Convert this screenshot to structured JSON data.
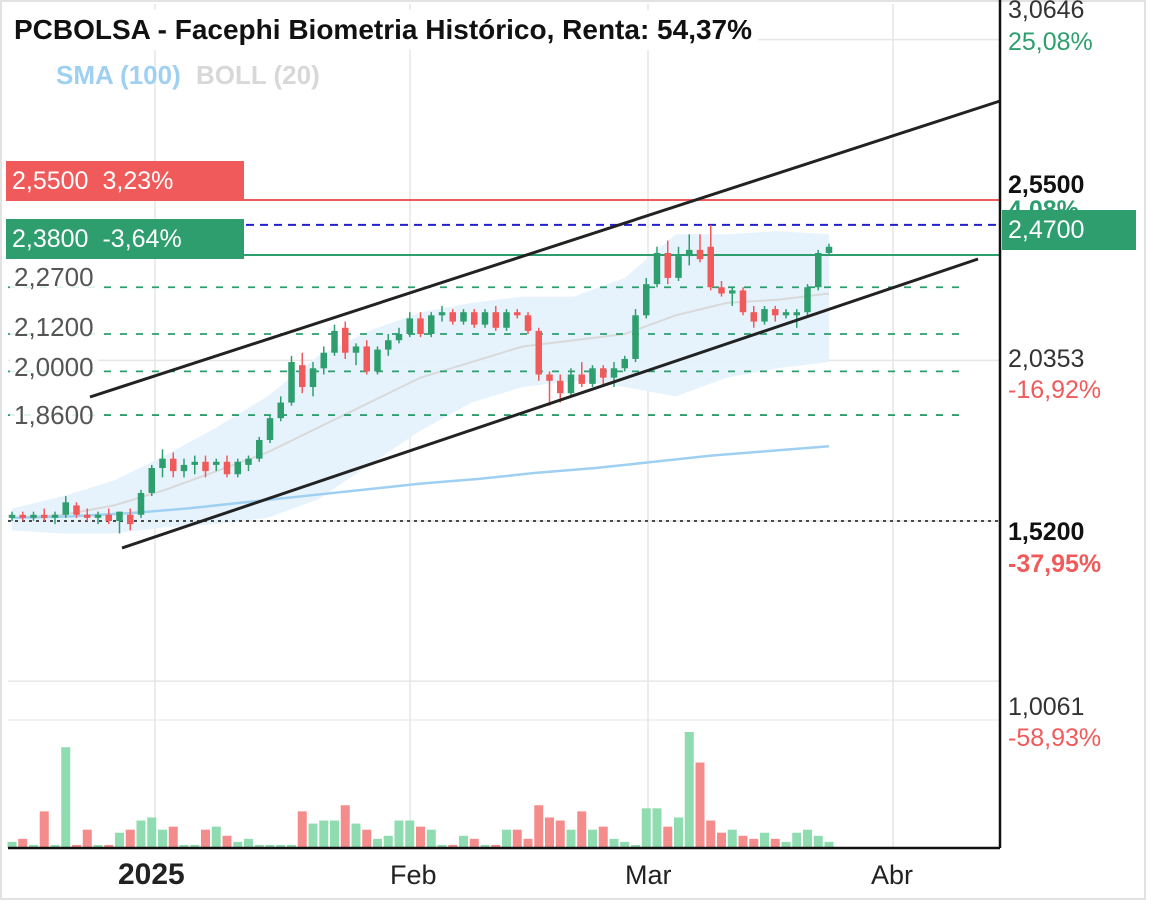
{
  "title": "PCBOLSA - Facephi Biometria Histórico, Renta: 54,37%",
  "indicators": {
    "sma": "SMA (100)",
    "boll": "BOLL (20)"
  },
  "badges": [
    {
      "price": "2,5500",
      "pct": "3,23%",
      "color": "#f05a5a"
    },
    {
      "price": "2,3800",
      "pct": "-3,64%",
      "color": "#2e9e6e"
    }
  ],
  "levels": [
    "2,2700",
    "2,1200",
    "2,0000",
    "1,8600"
  ],
  "right_axis": [
    {
      "price": "3,0646",
      "pct": "25,08%"
    },
    {
      "price": "2,5500",
      "pct": "4,08%"
    },
    {
      "price": "2,4700"
    },
    {
      "price": "2,0353",
      "pct": "-16,92%"
    },
    {
      "price": "1,5200",
      "pct": "-37,95%"
    },
    {
      "price": "1,0061",
      "pct": "-58,93%"
    }
  ],
  "x_labels": [
    "2025",
    "Feb",
    "Mar",
    "Abr"
  ],
  "colors": {
    "up": "#2e9e6e",
    "down": "#f05a5a",
    "sma": "#9fd0f2",
    "boll_band": "#e3f2fd",
    "boll_mid": "#d9d9d9",
    "channel": "#222222",
    "target_line": "#2020cc"
  },
  "chart_data": {
    "type": "candlestick",
    "title": "PCBOLSA - Facephi Biometria Histórico, Renta: 54,37%",
    "x_ticks": [
      "2025",
      "Feb",
      "Mar",
      "Abr"
    ],
    "y_ticks": [
      "3,0646",
      "2,5500",
      "2,0353",
      "1,5200",
      "1,0061"
    ],
    "ylim": [
      0.75,
      3.1
    ],
    "last_price": 2.47,
    "resistance": 2.55,
    "support_levels": [
      2.38,
      2.27,
      2.12,
      2.0,
      1.86
    ],
    "reference_price": 1.52,
    "grid": true,
    "ohlc": [
      [
        1.53,
        1.55,
        1.52,
        1.54
      ],
      [
        1.54,
        1.55,
        1.52,
        1.53
      ],
      [
        1.53,
        1.55,
        1.52,
        1.54
      ],
      [
        1.54,
        1.56,
        1.52,
        1.53
      ],
      [
        1.53,
        1.55,
        1.51,
        1.54
      ],
      [
        1.54,
        1.6,
        1.53,
        1.58
      ],
      [
        1.57,
        1.58,
        1.53,
        1.54
      ],
      [
        1.54,
        1.56,
        1.52,
        1.53
      ],
      [
        1.53,
        1.55,
        1.51,
        1.54
      ],
      [
        1.54,
        1.56,
        1.51,
        1.52
      ],
      [
        1.52,
        1.55,
        1.48,
        1.55
      ],
      [
        1.54,
        1.56,
        1.49,
        1.51
      ],
      [
        1.54,
        1.62,
        1.53,
        1.61
      ],
      [
        1.61,
        1.7,
        1.6,
        1.69
      ],
      [
        1.69,
        1.75,
        1.66,
        1.72
      ],
      [
        1.72,
        1.74,
        1.66,
        1.68
      ],
      [
        1.68,
        1.72,
        1.66,
        1.7
      ],
      [
        1.7,
        1.73,
        1.67,
        1.71
      ],
      [
        1.71,
        1.73,
        1.66,
        1.68
      ],
      [
        1.7,
        1.72,
        1.68,
        1.71
      ],
      [
        1.71,
        1.73,
        1.66,
        1.67
      ],
      [
        1.67,
        1.72,
        1.66,
        1.71
      ],
      [
        1.7,
        1.73,
        1.68,
        1.72
      ],
      [
        1.72,
        1.79,
        1.71,
        1.78
      ],
      [
        1.78,
        1.86,
        1.77,
        1.85
      ],
      [
        1.85,
        1.92,
        1.84,
        1.9
      ],
      [
        1.9,
        2.05,
        1.89,
        2.03
      ],
      [
        2.02,
        2.06,
        1.93,
        1.95
      ],
      [
        1.95,
        2.03,
        1.92,
        2.01
      ],
      [
        2.01,
        2.08,
        1.99,
        2.06
      ],
      [
        2.06,
        2.15,
        2.05,
        2.13
      ],
      [
        2.14,
        2.16,
        2.04,
        2.06
      ],
      [
        2.06,
        2.09,
        2.02,
        2.08
      ],
      [
        2.08,
        2.1,
        1.99,
        2.0
      ],
      [
        2.0,
        2.08,
        1.99,
        2.07
      ],
      [
        2.07,
        2.12,
        2.05,
        2.1
      ],
      [
        2.1,
        2.14,
        2.09,
        2.12
      ],
      [
        2.12,
        2.19,
        2.11,
        2.17
      ],
      [
        2.17,
        2.19,
        2.11,
        2.12
      ],
      [
        2.12,
        2.19,
        2.11,
        2.18
      ],
      [
        2.18,
        2.21,
        2.16,
        2.19
      ],
      [
        2.19,
        2.2,
        2.15,
        2.16
      ],
      [
        2.16,
        2.2,
        2.15,
        2.19
      ],
      [
        2.19,
        2.2,
        2.14,
        2.15
      ],
      [
        2.15,
        2.2,
        2.14,
        2.19
      ],
      [
        2.19,
        2.21,
        2.13,
        2.14
      ],
      [
        2.14,
        2.2,
        2.13,
        2.19
      ],
      [
        2.19,
        2.2,
        2.17,
        2.18
      ],
      [
        2.18,
        2.19,
        2.12,
        2.13
      ],
      [
        2.13,
        2.14,
        1.97,
        1.99
      ],
      [
        1.99,
        2.0,
        1.89,
        1.97
      ],
      [
        1.97,
        1.99,
        1.9,
        1.93
      ],
      [
        1.93,
        2.01,
        1.92,
        1.99
      ],
      [
        1.99,
        2.03,
        1.95,
        1.96
      ],
      [
        1.96,
        2.02,
        1.95,
        2.01
      ],
      [
        2.01,
        2.02,
        1.95,
        1.98
      ],
      [
        1.98,
        2.03,
        1.95,
        2.01
      ],
      [
        2.01,
        2.05,
        2.0,
        2.04
      ],
      [
        2.04,
        2.2,
        2.03,
        2.18
      ],
      [
        2.18,
        2.3,
        2.17,
        2.28
      ],
      [
        2.28,
        2.4,
        2.27,
        2.38
      ],
      [
        2.38,
        2.42,
        2.28,
        2.3
      ],
      [
        2.3,
        2.4,
        2.29,
        2.37
      ],
      [
        2.37,
        2.44,
        2.34,
        2.39
      ],
      [
        2.39,
        2.44,
        2.35,
        2.36
      ],
      [
        2.4,
        2.47,
        2.26,
        2.27
      ],
      [
        2.27,
        2.29,
        2.24,
        2.25
      ],
      [
        2.25,
        2.27,
        2.21,
        2.26
      ],
      [
        2.26,
        2.27,
        2.18,
        2.19
      ],
      [
        2.19,
        2.21,
        2.14,
        2.16
      ],
      [
        2.16,
        2.21,
        2.15,
        2.2
      ],
      [
        2.2,
        2.21,
        2.16,
        2.18
      ],
      [
        2.18,
        2.2,
        2.17,
        2.19
      ],
      [
        2.18,
        2.2,
        2.14,
        2.19
      ],
      [
        2.19,
        2.28,
        2.18,
        2.27
      ],
      [
        2.27,
        2.39,
        2.26,
        2.38
      ],
      [
        2.38,
        2.41,
        2.37,
        2.4
      ]
    ],
    "volume_relative": [
      2,
      3,
      1,
      12,
      1,
      33,
      1,
      6,
      1,
      1,
      5,
      6,
      9,
      10,
      6,
      7,
      1,
      1,
      6,
      7,
      4,
      2,
      3,
      1,
      1,
      1,
      1,
      12,
      8,
      9,
      9,
      14,
      8,
      6,
      3,
      4,
      9,
      9,
      7,
      6,
      1,
      1,
      4,
      3,
      1,
      1,
      6,
      6,
      3,
      14,
      10,
      9,
      6,
      12,
      6,
      7,
      3,
      2,
      1,
      13,
      13,
      7,
      10,
      38,
      28,
      9,
      5,
      6,
      4,
      3,
      5,
      3,
      2,
      5,
      6,
      4,
      2
    ],
    "sma_100": [
      1.53,
      1.535,
      1.545,
      1.56,
      1.58,
      1.6,
      1.62,
      1.64,
      1.655,
      1.675,
      1.69,
      1.71,
      1.73,
      1.745,
      1.76
    ],
    "bollinger_20": {
      "upper": [
        1.56,
        1.6,
        1.65,
        1.73,
        1.82,
        1.92,
        2.05,
        2.13,
        2.19,
        2.22,
        2.24,
        2.24,
        2.3,
        2.44,
        2.44,
        2.45,
        2.44
      ],
      "middle": [
        1.53,
        1.54,
        1.57,
        1.62,
        1.68,
        1.74,
        1.82,
        1.9,
        1.98,
        2.03,
        2.08,
        2.1,
        2.12,
        2.18,
        2.22,
        2.23,
        2.25
      ],
      "lower": [
        1.49,
        1.48,
        1.48,
        1.5,
        1.51,
        1.53,
        1.59,
        1.7,
        1.81,
        1.9,
        1.95,
        1.97,
        1.95,
        1.92,
        1.98,
        2.01,
        2.03
      ]
    }
  }
}
